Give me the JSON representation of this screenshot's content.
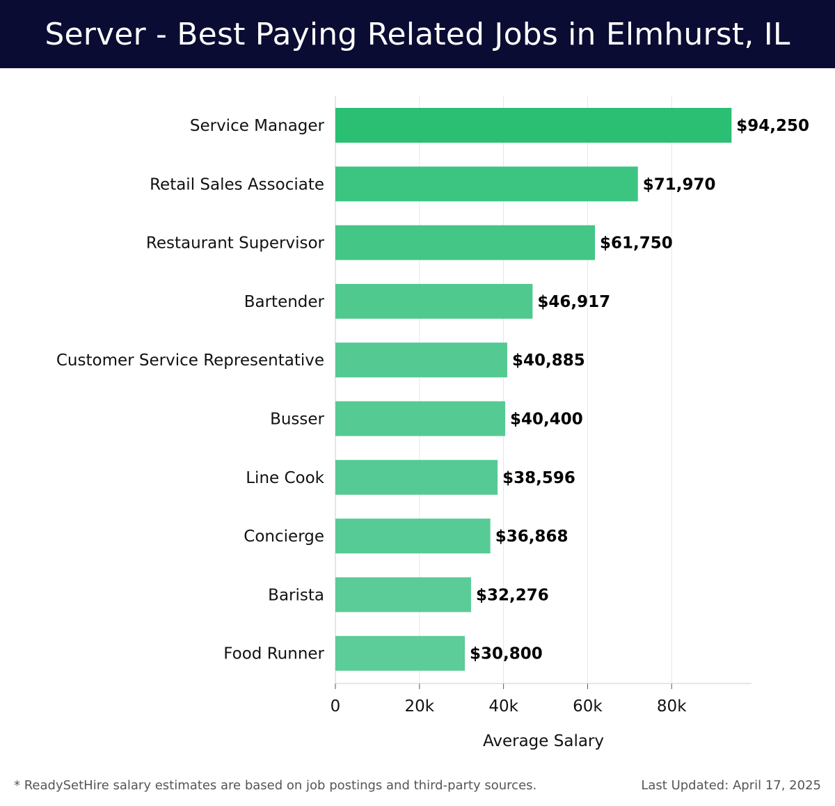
{
  "header": {
    "title": "Server - Best Paying Related Jobs in Elmhurst, IL"
  },
  "chart_data": {
    "type": "bar",
    "orientation": "horizontal",
    "categories": [
      "Service Manager",
      "Retail Sales Associate",
      "Restaurant Supervisor",
      "Bartender",
      "Customer Service Representative",
      "Busser",
      "Line Cook",
      "Concierge",
      "Barista",
      "Food Runner"
    ],
    "values": [
      94250,
      71970,
      61750,
      46917,
      40885,
      40400,
      38596,
      36868,
      32276,
      30800
    ],
    "value_labels": [
      "$94,250",
      "$71,970",
      "$61,750",
      "$46,917",
      "$40,885",
      "$40,400",
      "$38,596",
      "$36,868",
      "$32,276",
      "$30,800"
    ],
    "xlabel": "Average Salary",
    "xlim": [
      0,
      99000
    ],
    "xticks": [
      0,
      20000,
      40000,
      60000,
      80000
    ],
    "xtick_labels": [
      "0",
      "20k",
      "40k",
      "60k",
      "80k"
    ],
    "grid": "vertical",
    "colors": {
      "max_bar": "#2bbf74",
      "min_bar": "#5ccc98"
    }
  },
  "footer": {
    "note": "* ReadySetHire salary estimates are based on job postings and third-party sources.",
    "updated": "Last Updated: April 17, 2025"
  }
}
